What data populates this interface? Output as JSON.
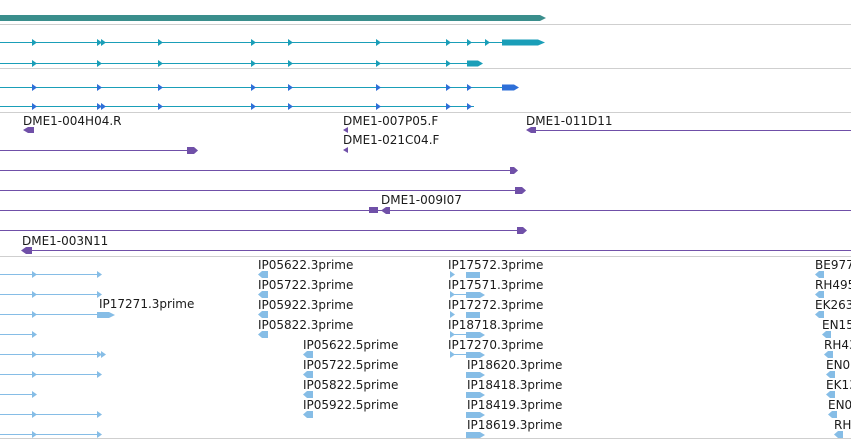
{
  "colors": {
    "gene_summary": "#3a8e8c",
    "transcript": "#1a9eb8",
    "transcript_alt": "#2e6fd8",
    "est": "#7050a8",
    "est_light": "#86bde6",
    "separator": "#cfcfcf"
  },
  "tracks": {
    "dme_clones": {
      "labels": [
        {
          "id": "DME1-004H04.R",
          "text": "DME1-004H04.R"
        },
        {
          "id": "DME1-007P05.F",
          "text": "DME1-007P05.F"
        },
        {
          "id": "DME1-011D11",
          "text": "DME1-011D11"
        },
        {
          "id": "DME1-021C04.F",
          "text": "DME1-021C04.F"
        },
        {
          "id": "DME1-009I07",
          "text": "DME1-009I07"
        },
        {
          "id": "DME1-003N11",
          "text": "DME1-003N11"
        }
      ]
    },
    "ip_clones": {
      "labels": [
        {
          "text": "IP05622.3prime"
        },
        {
          "text": "IP05722.3prime"
        },
        {
          "text": "IP05922.3prime"
        },
        {
          "text": "IP05822.3prime"
        },
        {
          "text": "IP05622.5prime"
        },
        {
          "text": "IP05722.5prime"
        },
        {
          "text": "IP05822.5prime"
        },
        {
          "text": "IP05922.5prime"
        },
        {
          "text": "IP17572.3prime"
        },
        {
          "text": "IP17571.3prime"
        },
        {
          "text": "IP17272.3prime"
        },
        {
          "text": "IP18718.3prime"
        },
        {
          "text": "IP17270.3prime"
        },
        {
          "text": "IP18620.3prime"
        },
        {
          "text": "IP18418.3prime"
        },
        {
          "text": "IP18419.3prime"
        },
        {
          "text": "IP18619.3prime"
        },
        {
          "text": "IP17271.3prime"
        }
      ],
      "edge_labels": [
        {
          "text": "BE977"
        },
        {
          "text": "RH495"
        },
        {
          "text": "EK263"
        },
        {
          "text": "EN15"
        },
        {
          "text": "RH43"
        },
        {
          "text": "EN0"
        },
        {
          "text": "EK13"
        },
        {
          "text": "EN0"
        },
        {
          "text": "RH"
        }
      ]
    }
  }
}
